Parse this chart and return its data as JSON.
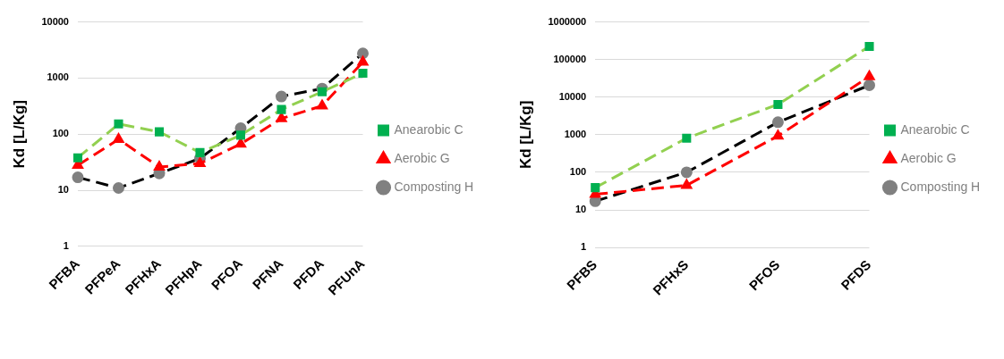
{
  "chart_data": [
    {
      "type": "line",
      "categories": [
        "PFBA",
        "PFPeA",
        "PFHxA",
        "PFHpA",
        "PFOA",
        "PFNA",
        "PFDA",
        "PFUnA"
      ],
      "ylabel": "Kd [L/Kg]",
      "log": "y",
      "ylim": [
        1,
        10000
      ],
      "yticks": [
        1,
        10,
        100,
        1000,
        10000
      ],
      "grid": "y",
      "legend": "right",
      "line_style": "dashed",
      "series": [
        {
          "name": "Anearobic C",
          "color": "#92d050",
          "marker": "square",
          "values": [
            38,
            152,
            110,
            47,
            96,
            275,
            570,
            1220
          ]
        },
        {
          "name": "Aerobic G",
          "color": "#ff0000",
          "marker": "triangle",
          "values": [
            28,
            81,
            26,
            30,
            67,
            190,
            320,
            1930
          ]
        },
        {
          "name": "Composting H",
          "color": "#000000",
          "marker": "circle",
          "values": [
            17,
            11,
            20,
            37,
            128,
            470,
            650,
            2760
          ]
        }
      ]
    },
    {
      "type": "line",
      "categories": [
        "PFBS",
        "PFHxS",
        "PFOS",
        "PFDS"
      ],
      "ylabel": "Kd [L/Kg]",
      "log": "y",
      "ylim": [
        1,
        1000000
      ],
      "yticks": [
        1,
        10,
        100,
        1000,
        10000,
        100000,
        1000000
      ],
      "grid": "y",
      "legend": "right",
      "line_style": "dashed",
      "series": [
        {
          "name": "Anearobic C",
          "color": "#92d050",
          "marker": "square",
          "values": [
            39,
            810,
            6400,
            224000
          ]
        },
        {
          "name": "Aerobic G",
          "color": "#ff0000",
          "marker": "triangle",
          "values": [
            26,
            45,
            930,
            35000
          ]
        },
        {
          "name": "Composting H",
          "color": "#000000",
          "marker": "circle",
          "values": [
            17,
            100,
            2150,
            20700
          ]
        }
      ]
    }
  ]
}
